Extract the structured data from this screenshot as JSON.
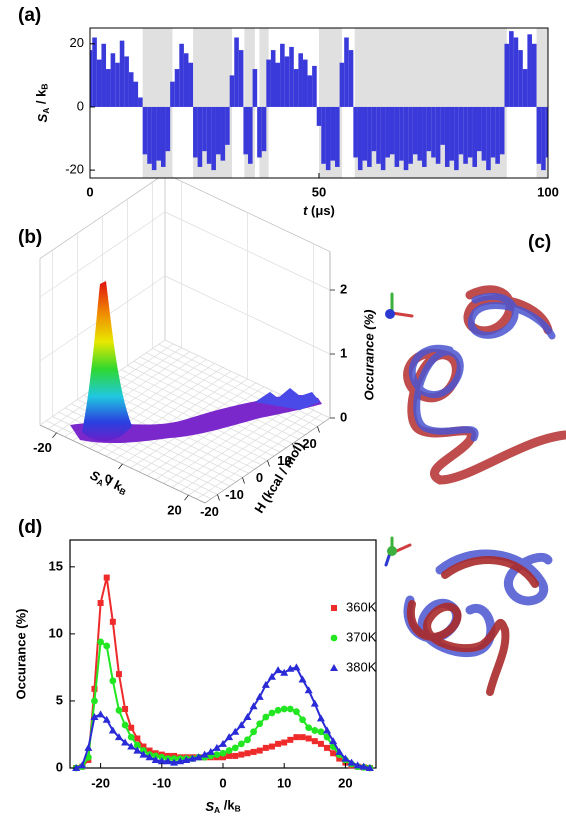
{
  "panel_labels": [
    "(a)",
    "(b)",
    "(c)",
    "(d)"
  ],
  "chart_data": [
    {
      "type": "bar",
      "x": [
        0,
        1,
        2,
        3,
        4,
        5,
        6,
        7,
        8,
        9,
        10,
        11,
        12,
        13,
        14,
        15,
        16,
        17,
        18,
        19,
        20,
        21,
        22,
        23,
        24,
        25,
        26,
        27,
        28,
        29,
        30,
        31,
        32,
        33,
        34,
        35,
        36,
        37,
        38,
        39,
        40,
        41,
        42,
        43,
        44,
        45,
        46,
        47,
        48,
        49,
        50,
        51,
        52,
        53,
        54,
        55,
        56,
        57,
        58,
        59,
        60,
        61,
        62,
        63,
        64,
        65,
        66,
        67,
        68,
        69,
        70,
        71,
        72,
        73,
        74,
        75,
        76,
        77,
        78,
        79,
        80,
        81,
        82,
        83,
        84,
        85,
        86,
        87,
        88,
        89,
        90,
        91,
        92,
        93,
        94,
        95,
        96,
        97,
        98,
        99,
        100
      ],
      "values": [
        18,
        22,
        15,
        20,
        12,
        17,
        14,
        21,
        16,
        11,
        8,
        3,
        -15,
        -18,
        -20,
        -17,
        -19,
        -14,
        8,
        12,
        20,
        17,
        14,
        -16,
        -19,
        -14,
        -18,
        -20,
        -15,
        -17,
        -12,
        10,
        22,
        18,
        -15,
        -18,
        12,
        -16,
        -14,
        15,
        18,
        14,
        20,
        16,
        19,
        12,
        17,
        15,
        10,
        13,
        -6,
        -18,
        -20,
        -17,
        -19,
        14,
        22,
        18,
        -16,
        -20,
        -17,
        -19,
        -14,
        -18,
        -20,
        -16,
        -15,
        -19,
        -17,
        -20,
        -18,
        -15,
        -17,
        -19,
        -14,
        -16,
        -18,
        -12,
        -19,
        -17,
        -20,
        -15,
        -18,
        -16,
        -19,
        -14,
        -17,
        -20,
        -16,
        -18,
        -15,
        20,
        24,
        22,
        18,
        12,
        23,
        20,
        -18,
        -20,
        -16
      ],
      "color": "#3a3adb",
      "shaded": [
        [
          11.5,
          18
        ],
        [
          22.5,
          31
        ],
        [
          33.7,
          36
        ],
        [
          37,
          39
        ],
        [
          50,
          55
        ],
        [
          57.8,
          91
        ],
        [
          97.5,
          100
        ]
      ],
      "shade_color": "#e0e0e0",
      "xlim": [
        0,
        100
      ],
      "xticks": [
        0,
        50,
        100
      ],
      "ylim": [
        -22.5,
        25
      ],
      "yticks": [
        -20,
        0,
        20
      ],
      "xlabel": [
        "t",
        " (μs)"
      ],
      "ylabel": [
        "S",
        "A",
        " / k",
        "B"
      ]
    },
    {
      "type": "surface",
      "xlabel": [
        "S",
        "A",
        " / k",
        "B"
      ],
      "ylabel": "H (kcal / mol)",
      "zlabel": "Occurance (%)",
      "xlim": [
        -25,
        25
      ],
      "xticks": [
        -20,
        0,
        20
      ],
      "ylim": [
        -25,
        25
      ],
      "yticks": [
        -20,
        -10,
        0,
        10,
        20
      ],
      "zlim": [
        0,
        2.6
      ],
      "zticks": [
        0,
        1,
        2
      ]
    },
    {
      "type": "line",
      "x": [
        -24,
        -23,
        -22,
        -21,
        -20,
        -19,
        -18,
        -17,
        -16,
        -15,
        -14,
        -13,
        -12,
        -11,
        -10,
        -9,
        -8,
        -7,
        -6,
        -5,
        -4,
        -3,
        -2,
        -1,
        0,
        1,
        2,
        3,
        4,
        5,
        6,
        7,
        8,
        9,
        10,
        11,
        12,
        13,
        14,
        15,
        16,
        17,
        18,
        19,
        20,
        21,
        22,
        23,
        24
      ],
      "series": [
        {
          "name": "360K",
          "color": "#ee2a2a",
          "marker": "square",
          "values": [
            0,
            0.1,
            0.6,
            5.9,
            12.3,
            14.2,
            10.9,
            7.0,
            4.4,
            3.0,
            2.2,
            1.6,
            1.3,
            1.1,
            1.0,
            0.9,
            0.9,
            0.8,
            0.8,
            0.8,
            0.8,
            0.8,
            0.8,
            0.8,
            0.8,
            0.9,
            0.9,
            1.0,
            1.1,
            1.2,
            1.3,
            1.5,
            1.6,
            1.8,
            1.9,
            2.1,
            2.3,
            2.3,
            2.2,
            2.0,
            1.8,
            1.5,
            1.1,
            0.7,
            0.4,
            0.2,
            0.1,
            0.05,
            0
          ]
        },
        {
          "name": "370K",
          "color": "#22e622",
          "marker": "circle",
          "values": [
            0,
            0.1,
            0.8,
            5.0,
            9.4,
            9.1,
            6.5,
            4.3,
            3.2,
            2.3,
            1.7,
            1.3,
            1.0,
            0.9,
            0.8,
            0.7,
            0.7,
            0.7,
            0.7,
            0.7,
            0.8,
            0.8,
            0.9,
            1.0,
            1.1,
            1.3,
            1.5,
            1.8,
            2.1,
            2.7,
            3.3,
            3.8,
            4.1,
            4.3,
            4.4,
            4.4,
            4.2,
            3.6,
            3.0,
            2.8,
            2.7,
            2.3,
            1.6,
            1.0,
            0.6,
            0.3,
            0.1,
            0.05,
            0
          ]
        },
        {
          "name": "380K",
          "color": "#2a2ad6",
          "marker": "triangle",
          "values": [
            0,
            0.2,
            1.5,
            3.8,
            4.0,
            3.6,
            2.8,
            2.3,
            1.9,
            1.6,
            1.3,
            1.0,
            0.8,
            0.6,
            0.5,
            0.5,
            0.4,
            0.5,
            0.6,
            0.7,
            0.8,
            1.0,
            1.2,
            1.5,
            1.8,
            2.3,
            2.7,
            3.2,
            3.8,
            4.6,
            5.3,
            6.2,
            6.8,
            7.3,
            7.1,
            7.4,
            7.5,
            6.6,
            5.8,
            4.8,
            3.7,
            2.8,
            2.0,
            1.2,
            0.7,
            0.4,
            0.2,
            0.1,
            0
          ]
        }
      ],
      "xlim": [
        -25,
        25
      ],
      "xticks": [
        -20,
        -10,
        0,
        10,
        20
      ],
      "ylim": [
        0,
        17
      ],
      "yticks": [
        0,
        5,
        10,
        15
      ],
      "xlabel": [
        "S",
        "A",
        " /k",
        "B"
      ],
      "ylabel": "Occurance (%)",
      "legend": "upper right"
    }
  ]
}
